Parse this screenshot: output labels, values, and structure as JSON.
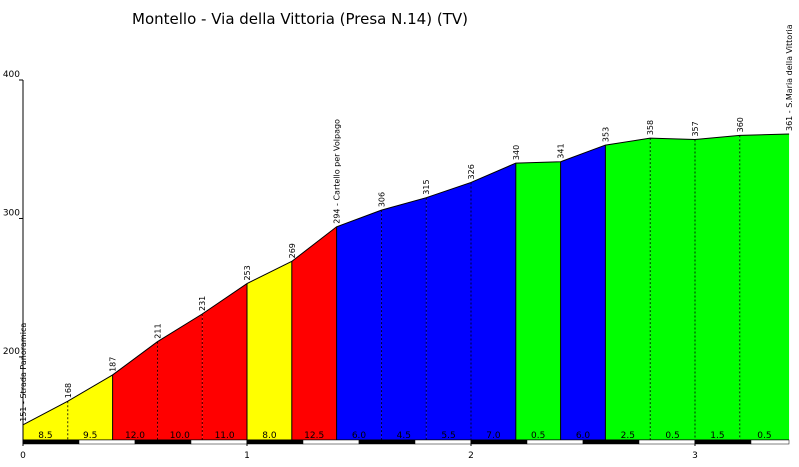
{
  "chart_data": {
    "type": "area",
    "title": "Montello - Via della Vittoria (Presa N.14) (TV)",
    "xlabel": "",
    "ylabel": "",
    "xlim": [
      0,
      3.43
    ],
    "ylim": [
      140,
      400
    ],
    "xticks": [
      0,
      1,
      2,
      3
    ],
    "xtick_labels": [
      "0",
      "1",
      "2",
      "3"
    ],
    "yticks": [
      200,
      300,
      400
    ],
    "ytick_labels": [
      "200",
      "300",
      "400"
    ],
    "profile": [
      {
        "x": 0.0,
        "y": 151,
        "label": "151 - Strada Panoramica"
      },
      {
        "x": 0.2,
        "y": 168,
        "label": "168"
      },
      {
        "x": 0.4,
        "y": 187,
        "label": "187"
      },
      {
        "x": 0.6,
        "y": 211,
        "label": "211"
      },
      {
        "x": 0.8,
        "y": 231,
        "label": "231"
      },
      {
        "x": 1.0,
        "y": 253,
        "label": "253"
      },
      {
        "x": 1.2,
        "y": 269,
        "label": "269"
      },
      {
        "x": 1.4,
        "y": 294,
        "label": "294 - Cartello per Volpago"
      },
      {
        "x": 1.6,
        "y": 306,
        "label": "306"
      },
      {
        "x": 1.8,
        "y": 315,
        "label": "315"
      },
      {
        "x": 2.0,
        "y": 326,
        "label": "326"
      },
      {
        "x": 2.2,
        "y": 340,
        "label": "340"
      },
      {
        "x": 2.4,
        "y": 341,
        "label": "341"
      },
      {
        "x": 2.6,
        "y": 353,
        "label": "353"
      },
      {
        "x": 2.8,
        "y": 358,
        "label": "358"
      },
      {
        "x": 3.0,
        "y": 357,
        "label": "357"
      },
      {
        "x": 3.2,
        "y": 360,
        "label": "360"
      },
      {
        "x": 3.42,
        "y": 361,
        "label": "361 - S.Maria della Vittoria"
      }
    ],
    "segments": [
      {
        "gradient": "8.5",
        "color": "#ffff00"
      },
      {
        "gradient": "9.5",
        "color": "#ffff00"
      },
      {
        "gradient": "12.0",
        "color": "#ff0000"
      },
      {
        "gradient": "10.0",
        "color": "#ff0000"
      },
      {
        "gradient": "11.0",
        "color": "#ff0000"
      },
      {
        "gradient": "8.0",
        "color": "#ffff00"
      },
      {
        "gradient": "12.5",
        "color": "#ff0000"
      },
      {
        "gradient": "6.0",
        "color": "#0000ff"
      },
      {
        "gradient": "4.5",
        "color": "#0000ff"
      },
      {
        "gradient": "5.5",
        "color": "#0000ff"
      },
      {
        "gradient": "7.0",
        "color": "#0000ff"
      },
      {
        "gradient": "0.5",
        "color": "#00ff00"
      },
      {
        "gradient": "6.0",
        "color": "#0000ff"
      },
      {
        "gradient": "2.5",
        "color": "#00ff00"
      },
      {
        "gradient": "0.5",
        "color": "#00ff00"
      },
      {
        "gradient": "1.5",
        "color": "#00ff00"
      },
      {
        "gradient": "0.5",
        "color": "#00ff00"
      }
    ]
  }
}
